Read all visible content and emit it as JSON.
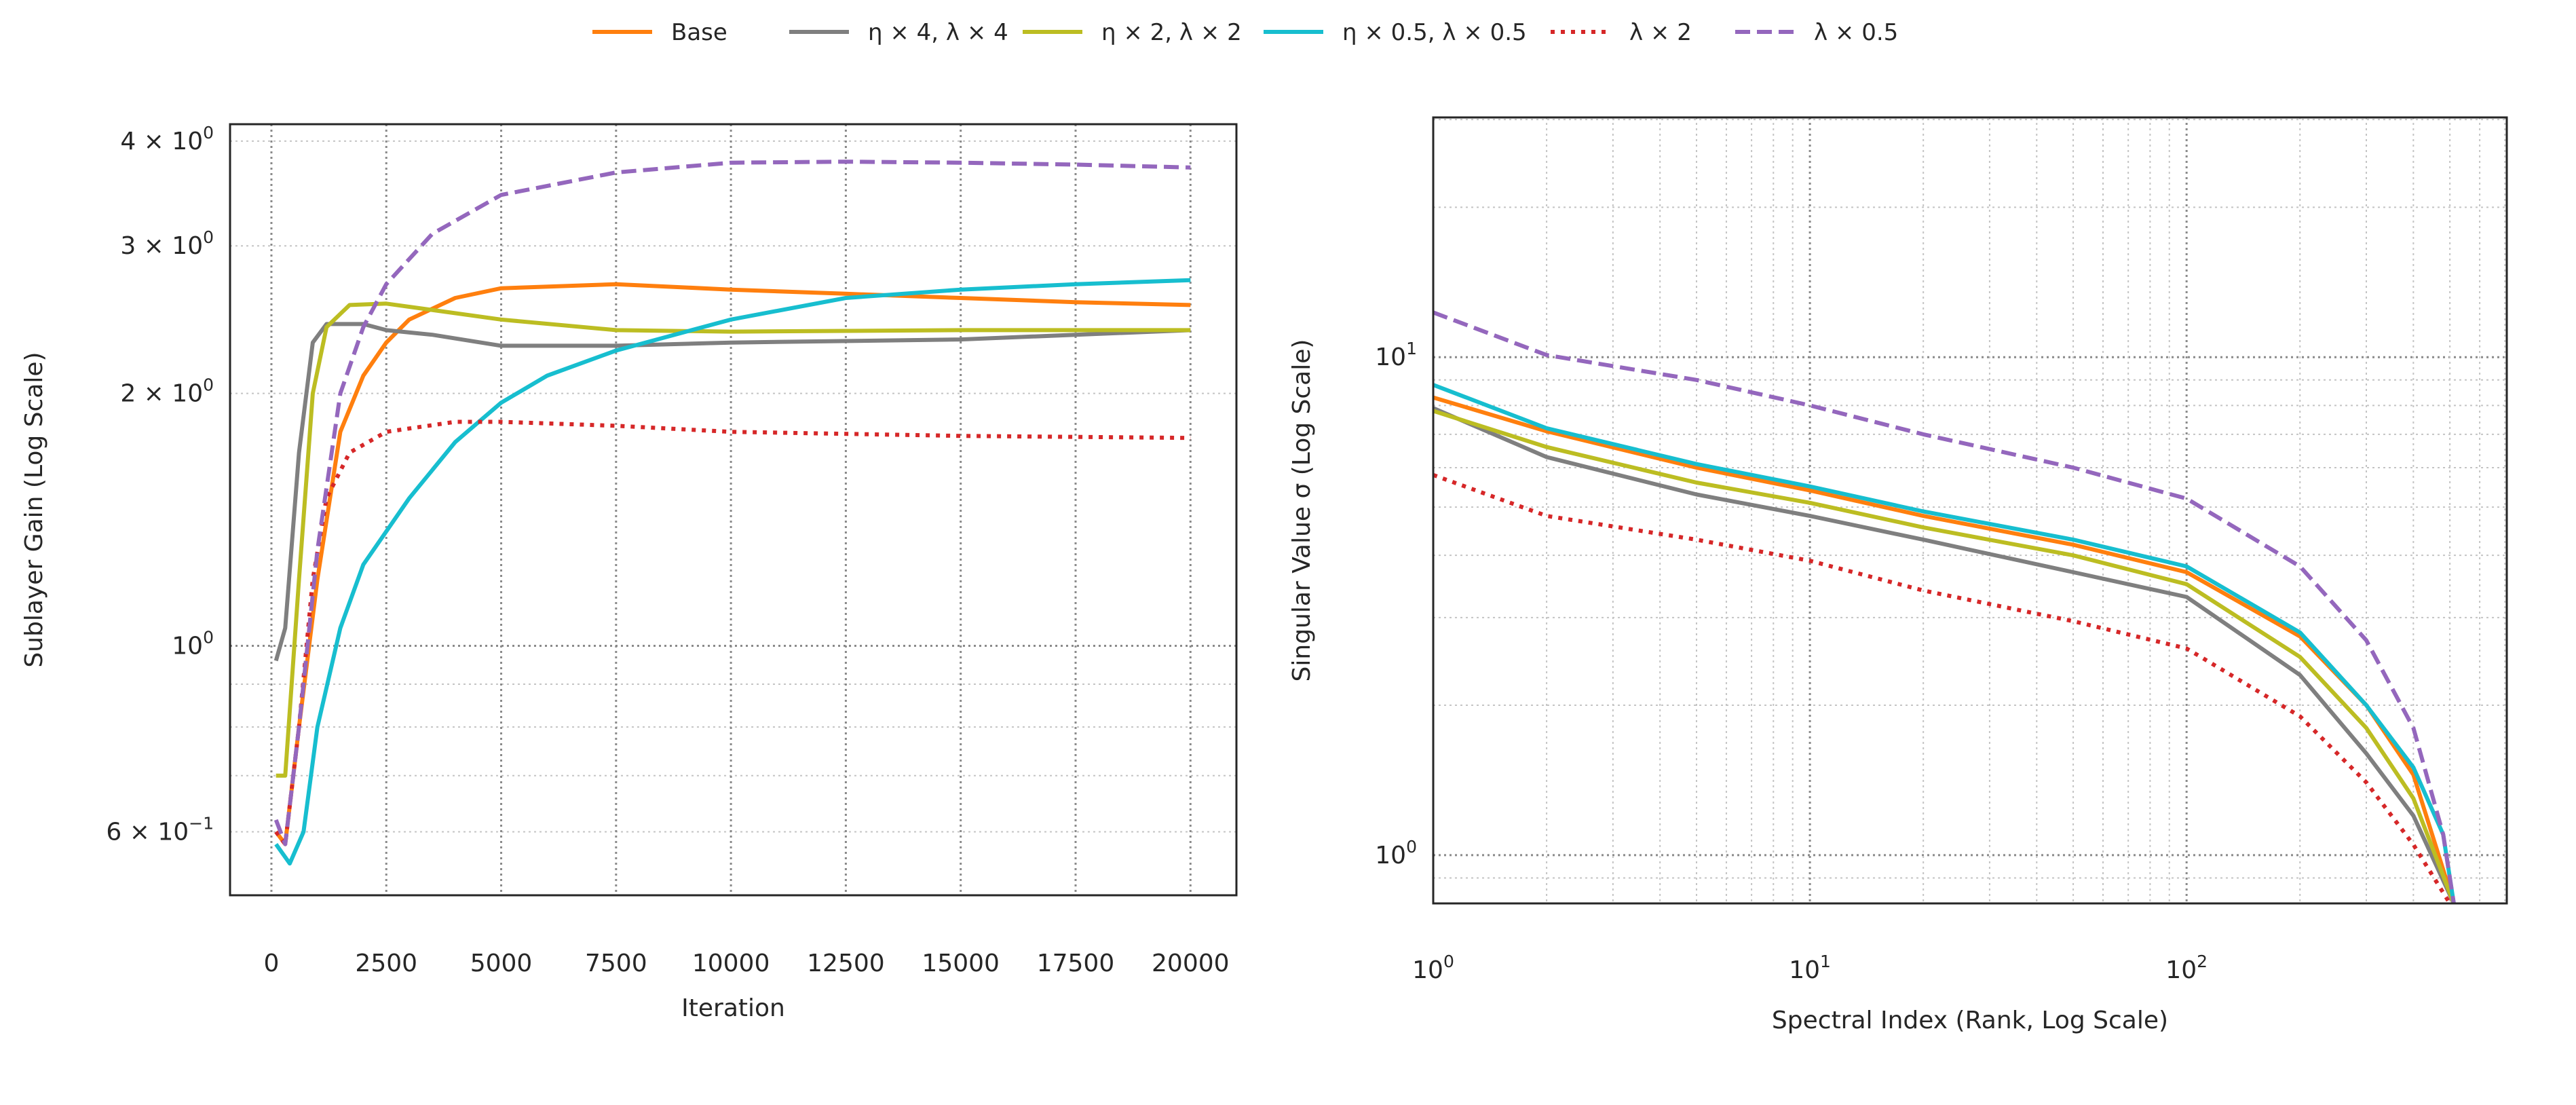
{
  "legend": {
    "placement": "top-center",
    "items": [
      {
        "label": "Base",
        "color": "#ff7f0e",
        "style": "solid"
      },
      {
        "label": "η × 4, λ × 4",
        "color": "#7f7f7f",
        "style": "solid"
      },
      {
        "label": "η × 2, λ × 2",
        "color": "#bcbd22",
        "style": "solid"
      },
      {
        "label": "η × 0.5, λ × 0.5",
        "color": "#17becf",
        "style": "solid"
      },
      {
        "label": "λ × 2",
        "color": "#d62728",
        "style": "dotted"
      },
      {
        "label": "λ × 0.5",
        "color": "#9467bd",
        "style": "dashed"
      }
    ]
  },
  "chart_data": [
    {
      "type": "line",
      "xlabel": "Iteration",
      "ylabel": "Sublayer Gain (Log Scale)",
      "xscale": "linear",
      "yscale": "log",
      "xlim": [
        -900,
        21000
      ],
      "ylim": [
        0.504,
        4.19
      ],
      "grid": true,
      "xticks": [
        0,
        2500,
        5000,
        7500,
        10000,
        12500,
        15000,
        17500,
        20000
      ],
      "xtick_labels": [
        "0",
        "2500",
        "5000",
        "7500",
        "10000",
        "12500",
        "15000",
        "17500",
        "20000"
      ],
      "yticks": [
        {
          "value": 4,
          "mant": "4 × 10",
          "exp": "0"
        },
        {
          "value": 3,
          "mant": "3 × 10",
          "exp": "0"
        },
        {
          "value": 2,
          "mant": "2 × 10",
          "exp": "0"
        },
        {
          "value": 1,
          "mant": "10",
          "exp": "0"
        },
        {
          "value": 0.6,
          "mant": "6 × 10",
          "exp": "−1"
        }
      ],
      "series": [
        {
          "name": "Base",
          "x": [
            100,
            300,
            600,
            1000,
            1500,
            2000,
            2500,
            3000,
            4000,
            5000,
            7500,
            10000,
            12500,
            15000,
            17500,
            20000
          ],
          "y": [
            0.6,
            0.58,
            0.8,
            1.2,
            1.8,
            2.1,
            2.3,
            2.45,
            2.6,
            2.67,
            2.7,
            2.66,
            2.63,
            2.6,
            2.57,
            2.55
          ]
        },
        {
          "name": "η × 4, λ × 4",
          "x": [
            100,
            300,
            600,
            900,
            1200,
            2000,
            2500,
            3500,
            5000,
            7500,
            10000,
            15000,
            20000
          ],
          "y": [
            0.96,
            1.05,
            1.7,
            2.3,
            2.42,
            2.42,
            2.38,
            2.35,
            2.28,
            2.28,
            2.3,
            2.32,
            2.38
          ]
        },
        {
          "name": "η × 2, λ × 2",
          "x": [
            100,
            300,
            600,
            900,
            1200,
            1700,
            2500,
            5000,
            7500,
            10000,
            15000,
            20000
          ],
          "y": [
            0.7,
            0.7,
            1.2,
            2.0,
            2.4,
            2.55,
            2.56,
            2.45,
            2.38,
            2.37,
            2.38,
            2.38
          ]
        },
        {
          "name": "η × 0.5, λ × 0.5",
          "x": [
            100,
            400,
            700,
            1000,
            1500,
            2000,
            3000,
            4000,
            5000,
            6000,
            7500,
            10000,
            12500,
            15000,
            17500,
            20000
          ],
          "y": [
            0.58,
            0.55,
            0.6,
            0.8,
            1.05,
            1.25,
            1.5,
            1.75,
            1.95,
            2.1,
            2.25,
            2.45,
            2.6,
            2.66,
            2.7,
            2.73
          ]
        },
        {
          "name": "λ × 2",
          "x": [
            100,
            300,
            600,
            900,
            1200,
            1700,
            2500,
            4000,
            5000,
            7500,
            10000,
            15000,
            20000
          ],
          "y": [
            0.6,
            0.58,
            0.8,
            1.2,
            1.5,
            1.7,
            1.8,
            1.85,
            1.85,
            1.83,
            1.8,
            1.78,
            1.77
          ]
        },
        {
          "name": "λ × 0.5",
          "x": [
            100,
            300,
            600,
            1000,
            1500,
            2000,
            2500,
            3500,
            5000,
            7500,
            10000,
            12500,
            15000,
            17500,
            20000
          ],
          "y": [
            0.62,
            0.58,
            0.8,
            1.3,
            2.0,
            2.4,
            2.7,
            3.1,
            3.45,
            3.67,
            3.77,
            3.78,
            3.77,
            3.75,
            3.72
          ]
        }
      ]
    },
    {
      "type": "line",
      "xlabel": "Spectral Index (Rank, Log Scale)",
      "ylabel": "Singular Value σ  (Log Scale)",
      "xscale": "log",
      "yscale": "log",
      "xlim": [
        1,
        708
      ],
      "ylim": [
        0.8,
        30.3
      ],
      "grid": true,
      "xticks": [
        {
          "value": 1,
          "mant": "10",
          "exp": "0"
        },
        {
          "value": 10,
          "mant": "10",
          "exp": "1"
        },
        {
          "value": 100,
          "mant": "10",
          "exp": "2"
        }
      ],
      "yticks": [
        {
          "value": 1,
          "mant": "10",
          "exp": "0"
        },
        {
          "value": 10,
          "mant": "10",
          "exp": "1"
        }
      ],
      "series": [
        {
          "name": "Base",
          "x": [
            1,
            2,
            5,
            10,
            20,
            50,
            100,
            200,
            300,
            400,
            512
          ],
          "y": [
            8.3,
            7.1,
            6.0,
            5.4,
            4.8,
            4.2,
            3.7,
            2.75,
            2.0,
            1.45,
            0.8
          ]
        },
        {
          "name": "η × 4, λ × 4",
          "x": [
            1,
            2,
            5,
            10,
            20,
            50,
            100,
            200,
            300,
            400,
            512
          ],
          "y": [
            7.9,
            6.3,
            5.3,
            4.8,
            4.3,
            3.7,
            3.3,
            2.3,
            1.6,
            1.2,
            0.8
          ]
        },
        {
          "name": "η × 2, λ × 2",
          "x": [
            1,
            2,
            5,
            10,
            20,
            50,
            100,
            200,
            300,
            400,
            512
          ],
          "y": [
            7.8,
            6.6,
            5.6,
            5.1,
            4.55,
            4.0,
            3.5,
            2.5,
            1.8,
            1.3,
            0.8
          ]
        },
        {
          "name": "η × 0.5, λ × 0.5",
          "x": [
            1,
            2,
            5,
            10,
            20,
            50,
            100,
            200,
            300,
            400,
            480,
            512
          ],
          "y": [
            8.8,
            7.2,
            6.1,
            5.5,
            4.9,
            4.3,
            3.8,
            2.8,
            2.0,
            1.5,
            1.1,
            0.8
          ]
        },
        {
          "name": "λ × 2",
          "x": [
            1,
            2,
            5,
            10,
            20,
            50,
            100,
            200,
            300,
            400,
            500
          ],
          "y": [
            5.8,
            4.8,
            4.3,
            3.9,
            3.4,
            2.95,
            2.6,
            1.9,
            1.4,
            1.05,
            0.8
          ]
        },
        {
          "name": "λ × 0.5",
          "x": [
            1,
            2,
            5,
            10,
            20,
            50,
            100,
            200,
            300,
            400,
            480,
            512
          ],
          "y": [
            12.3,
            10.1,
            9.0,
            8.0,
            7.0,
            6.0,
            5.2,
            3.8,
            2.7,
            1.8,
            1.1,
            0.8
          ]
        }
      ]
    }
  ]
}
